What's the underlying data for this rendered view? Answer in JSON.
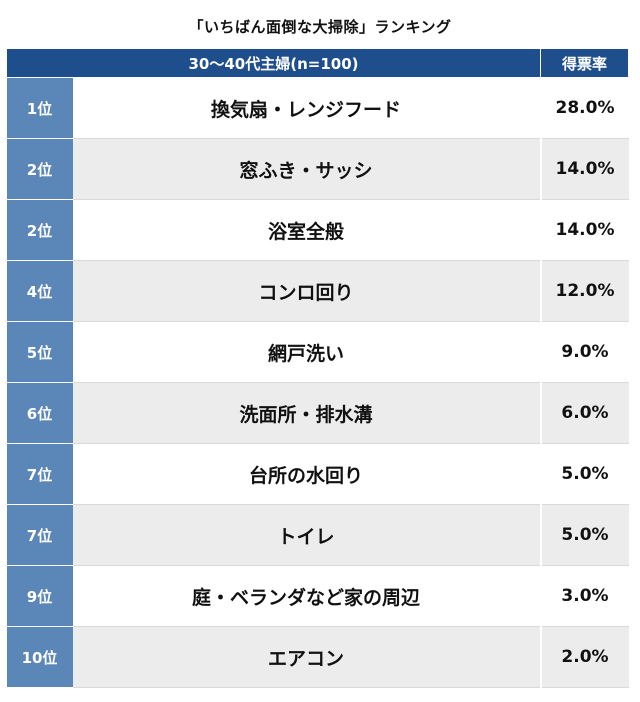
{
  "title": "「いちばん面倒な大掃除」ランキング",
  "chart_data": {
    "type": "table",
    "title": "「いちばん面倒な大掃除」ランキング",
    "columns": [
      "30〜40代主婦(n=100)",
      "得票率"
    ],
    "rows": [
      {
        "rank": "1位",
        "item": "換気扇・レンジフード",
        "percent": "28.0%",
        "value": 28.0
      },
      {
        "rank": "2位",
        "item": "窓ふき・サッシ",
        "percent": "14.0%",
        "value": 14.0
      },
      {
        "rank": "2位",
        "item": "浴室全般",
        "percent": "14.0%",
        "value": 14.0
      },
      {
        "rank": "4位",
        "item": "コンロ回り",
        "percent": "12.0%",
        "value": 12.0
      },
      {
        "rank": "5位",
        "item": "網戸洗い",
        "percent": "9.0%",
        "value": 9.0
      },
      {
        "rank": "6位",
        "item": "洗面所・排水溝",
        "percent": "6.0%",
        "value": 6.0
      },
      {
        "rank": "7位",
        "item": "台所の水回り",
        "percent": "5.0%",
        "value": 5.0
      },
      {
        "rank": "7位",
        "item": "トイレ",
        "percent": "5.0%",
        "value": 5.0
      },
      {
        "rank": "9位",
        "item": "庭・ベランダなど家の周辺",
        "percent": "3.0%",
        "value": 3.0
      },
      {
        "rank": "10位",
        "item": "エアコン",
        "percent": "2.0%",
        "value": 2.0
      }
    ]
  },
  "colors": {
    "header_bg": "#1f4e8c",
    "rank_bg": "#5b86b8",
    "row_alt_bg": "#ececec"
  }
}
